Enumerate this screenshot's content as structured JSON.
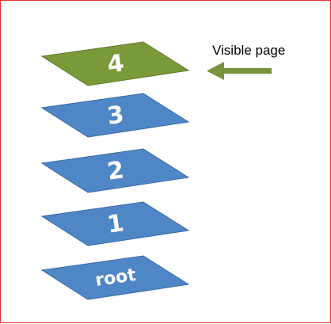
{
  "diagram": {
    "title": "",
    "pages": [
      {
        "label": "4",
        "state": "visible"
      },
      {
        "label": "3",
        "state": "hidden"
      },
      {
        "label": "2",
        "state": "hidden"
      },
      {
        "label": "1",
        "state": "hidden"
      },
      {
        "label": "root",
        "state": "hidden"
      }
    ],
    "annotation": {
      "label": "Visible page",
      "points_to": "4"
    },
    "colors": {
      "visible_fill": "#7a9a3a",
      "visible_stroke": "#5d7a2a",
      "hidden_fill": "#4f86c6",
      "hidden_stroke": "#3a6aa6",
      "arrow": "#77933c",
      "border": "#e03030"
    }
  }
}
